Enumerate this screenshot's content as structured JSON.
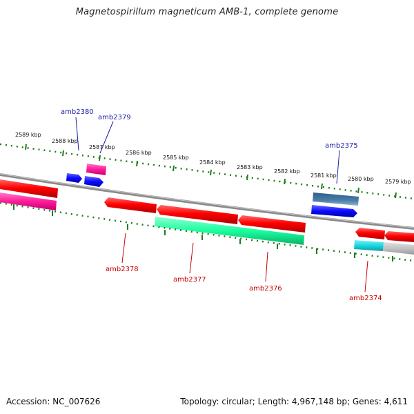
{
  "title": "Magnetospirillum magneticum AMB-1, complete genome",
  "footer": {
    "accession": "Accession: NC_007626",
    "summary": "Topology: circular; Length: 4,967,148 bp; Genes: 4,611"
  },
  "scale_labels": [
    "2589 kbp",
    "2588 kbp",
    "2587 kbp",
    "2586 kbp",
    "2585 kbp",
    "2584 kbp",
    "2583 kbp",
    "2582 kbp",
    "2581 kbp",
    "2580 kbp",
    "2579 kbp"
  ],
  "gene_labels": {
    "amb2380": "amb2380",
    "amb2379": "amb2379",
    "amb2375": "amb2375",
    "amb2378": "amb2378",
    "amb2377": "amb2377",
    "amb2376": "amb2376",
    "amb2374": "amb2374"
  },
  "colors": {
    "forward_label": "#1a1aa8",
    "reverse_label": "#c80000",
    "tick": "#1e7d1e",
    "backbone": "#8a8a8a",
    "red_gene": "#ff0000",
    "magenta_gene": "#ff1a9a",
    "green_gene": "#1aff9e",
    "blue_gene": "#0a0aff",
    "steel_gene": "#3b6f9a",
    "cyan_gene": "#1ad6e0",
    "gray_gene": "#bdbdbd"
  }
}
